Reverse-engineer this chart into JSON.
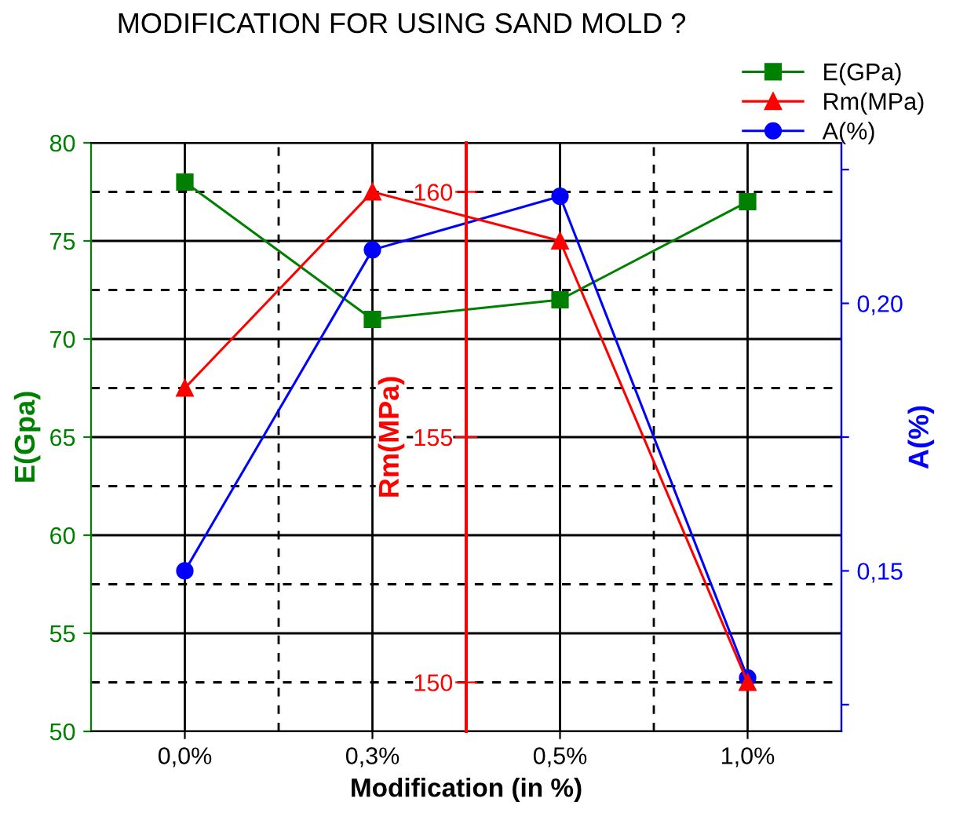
{
  "chart_data": {
    "type": "line",
    "title": "MODIFICATION FOR USING SAND MOLD ?",
    "xlabel": "Modification (in %)",
    "ylabel": "E(Gpa)",
    "y2label": "A(%)",
    "y3label": "Rm(MPa)",
    "categories": [
      "0,0%",
      "0,3%",
      "0,5%",
      "1,0%"
    ],
    "series": [
      {
        "name": "E(GPa)",
        "color": "#008000",
        "values": [
          78,
          71,
          72,
          77
        ],
        "marker": "square"
      },
      {
        "name": "Rm(MPa)",
        "color": "#ff0000",
        "values": [
          156,
          160,
          159,
          150
        ],
        "marker": "triangle",
        "axis": "y3"
      },
      {
        "name": "A(%)",
        "color": "#0000ff",
        "values": [
          0.15,
          0.21,
          0.22,
          0.13
        ],
        "marker": "circle",
        "axis": "y2"
      }
    ],
    "ylim": [
      50,
      80
    ],
    "yticks": [
      50,
      55,
      60,
      65,
      70,
      75,
      80
    ],
    "y2lim": [
      0.12,
      0.23
    ],
    "y2ticks": [
      {
        "value": 0.125,
        "label": null
      },
      {
        "value": 0.15,
        "label": "0,15"
      },
      {
        "value": 0.175,
        "label": null
      },
      {
        "value": 0.2,
        "label": "0,20"
      },
      {
        "value": 0.225,
        "label": null
      }
    ],
    "y3lim": [
      149,
      161
    ],
    "y3ticks": [
      150,
      155,
      160
    ],
    "grid": true,
    "legend": "top right",
    "line_style": "solid"
  }
}
